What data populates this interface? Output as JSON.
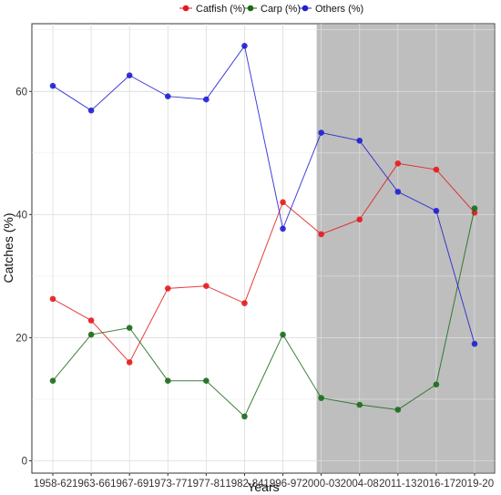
{
  "chart_data": {
    "type": "line",
    "title": "",
    "xlabel": "Years",
    "ylabel": "Catches (%)",
    "categories": [
      "1958-62",
      "1963-66",
      "1967-69",
      "1973-77",
      "1977-81",
      "1982-84",
      "1996-97",
      "2000-03",
      "2004-08",
      "2011-13",
      "2016-17",
      "2019-20"
    ],
    "ylim": [
      -2,
      71
    ],
    "yticks": [
      0,
      20,
      40,
      60
    ],
    "grid": true,
    "legend_position": "top",
    "shaded_region": {
      "from": "2000-03",
      "to": "2019-20",
      "color": "#bebebe"
    },
    "series": [
      {
        "name": "Catfish (%)",
        "color": "#e41a1c",
        "values": [
          26.3,
          22.8,
          16.0,
          28.0,
          28.4,
          25.6,
          42.0,
          36.8,
          39.2,
          48.3,
          47.3,
          40.3
        ]
      },
      {
        "name": "Carp (%)",
        "color": "#1b6b1b",
        "values": [
          13.0,
          20.5,
          21.6,
          13.0,
          13.0,
          7.2,
          20.5,
          10.2,
          9.1,
          8.3,
          12.4,
          41.0
        ]
      },
      {
        "name": "Others (%)",
        "color": "#1f1fd1",
        "values": [
          60.9,
          56.9,
          62.6,
          59.2,
          58.7,
          67.4,
          37.7,
          53.3,
          52.0,
          43.7,
          40.6,
          19.0
        ]
      }
    ]
  }
}
